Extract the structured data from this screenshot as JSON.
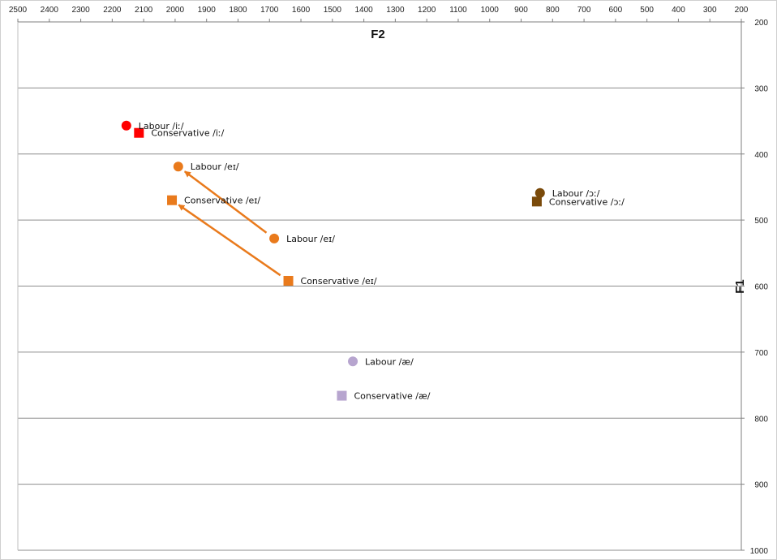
{
  "chart_data": {
    "type": "scatter",
    "title": "",
    "xlabel": "F2",
    "ylabel": "F1",
    "xlim": [
      200,
      2500
    ],
    "ylim": [
      200,
      1000
    ],
    "x_reversed": true,
    "y_reversed": true,
    "x_axis_position": "top",
    "y_axis_position": "right",
    "x_ticks": [
      2500,
      2400,
      2300,
      2200,
      2100,
      2000,
      1900,
      1800,
      1700,
      1600,
      1500,
      1400,
      1300,
      1200,
      1100,
      1000,
      900,
      800,
      700,
      600,
      500,
      400,
      300,
      200
    ],
    "y_ticks": [
      200,
      300,
      400,
      500,
      600,
      700,
      800,
      900,
      1000
    ],
    "grid": "horizontal",
    "legend": "none",
    "points": [
      {
        "label": "Labour /iː/",
        "x": 2155,
        "y": 357,
        "marker": "circle",
        "color": "#ff0000"
      },
      {
        "label": "Conservative /iː/",
        "x": 2115,
        "y": 368,
        "marker": "square",
        "color": "#ff0000"
      },
      {
        "label": "Labour /eɪ/",
        "x": 1990,
        "y": 419,
        "marker": "circle",
        "color": "#e97a1c"
      },
      {
        "label": "Conservative /eɪ/",
        "x": 2010,
        "y": 470,
        "marker": "square",
        "color": "#e97a1c"
      },
      {
        "label": "Labour /eɪ/",
        "x": 1685,
        "y": 528,
        "marker": "circle",
        "color": "#e97a1c"
      },
      {
        "label": "Conservative /eɪ/",
        "x": 1640,
        "y": 592,
        "marker": "square",
        "color": "#e97a1c"
      },
      {
        "label": "Labour /ɔː/",
        "x": 840,
        "y": 459,
        "marker": "circle",
        "color": "#7a4a0a"
      },
      {
        "label": "Conservative /ɔː/",
        "x": 850,
        "y": 472,
        "marker": "square",
        "color": "#7a4a0a"
      },
      {
        "label": "Labour /æ/",
        "x": 1435,
        "y": 714,
        "marker": "circle",
        "color": "#b7a5cf"
      },
      {
        "label": "Conservative /æ/",
        "x": 1470,
        "y": 766,
        "marker": "square",
        "color": "#b7a5cf"
      }
    ],
    "arrows": [
      {
        "from": [
          1685,
          528
        ],
        "to": [
          1990,
          419
        ],
        "color": "#e97a1c"
      },
      {
        "from": [
          1640,
          592
        ],
        "to": [
          2010,
          470
        ],
        "color": "#e97a1c"
      }
    ]
  }
}
